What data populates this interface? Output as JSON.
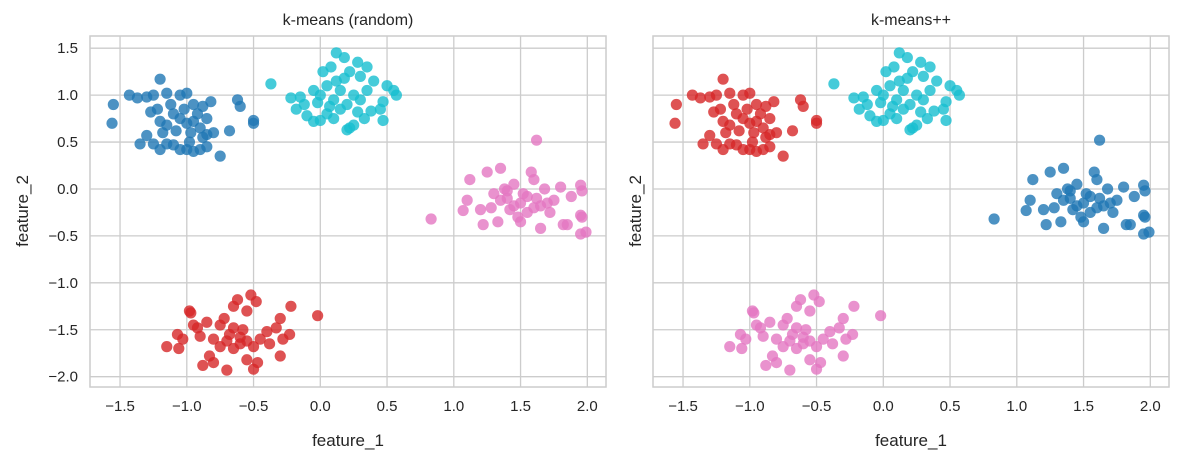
{
  "chart_data": {
    "type": "scatter",
    "grid": true,
    "xlim": [
      -1.725,
      2.14
    ],
    "ylim": [
      -2.11,
      1.63
    ],
    "xticks": [
      "−1.5",
      "−1.0",
      "−0.5",
      "0.0",
      "0.5",
      "1.0",
      "1.5",
      "2.0"
    ],
    "xtick_values": [
      -1.5,
      -1.0,
      -0.5,
      0.0,
      0.5,
      1.0,
      1.5,
      2.0
    ],
    "yticks": [
      "−2.0",
      "−1.5",
      "−1.0",
      "−0.5",
      "0.0",
      "0.5",
      "1.0",
      "1.5"
    ],
    "ytick_values": [
      -2.0,
      -1.5,
      -1.0,
      -0.5,
      0.0,
      0.5,
      1.0,
      1.5
    ],
    "colors": {
      "blue": "#1f77b4",
      "cyan": "#17becf",
      "pink": "#e377c2",
      "red": "#d62728"
    },
    "clusters": {
      "A": [
        [
          -1.55,
          0.9
        ],
        [
          -1.56,
          0.7
        ],
        [
          -1.43,
          1.0
        ],
        [
          -1.37,
          0.97
        ],
        [
          -1.35,
          0.48
        ],
        [
          -1.3,
          0.98
        ],
        [
          -1.25,
          1.0
        ],
        [
          -1.2,
          1.17
        ],
        [
          -1.22,
          0.85
        ],
        [
          -1.27,
          0.82
        ],
        [
          -1.3,
          0.57
        ],
        [
          -1.25,
          0.48
        ],
        [
          -1.2,
          0.42
        ],
        [
          -1.15,
          0.48
        ],
        [
          -1.1,
          0.47
        ],
        [
          -1.05,
          0.42
        ],
        [
          -1.0,
          0.42
        ],
        [
          -0.95,
          0.4
        ],
        [
          -0.9,
          0.42
        ],
        [
          -0.85,
          0.45
        ],
        [
          -0.8,
          0.6
        ],
        [
          -0.85,
          0.58
        ],
        [
          -0.75,
          0.35
        ],
        [
          -0.68,
          0.62
        ],
        [
          -0.6,
          0.88
        ],
        [
          -0.62,
          0.95
        ],
        [
          -0.5,
          0.73
        ],
        [
          -0.5,
          0.7
        ],
        [
          -1.15,
          1.02
        ],
        [
          -1.05,
          1.0
        ],
        [
          -1.0,
          1.02
        ],
        [
          -0.95,
          0.9
        ],
        [
          -0.88,
          0.88
        ],
        [
          -0.82,
          0.93
        ],
        [
          -1.1,
          0.8
        ],
        [
          -1.05,
          0.75
        ],
        [
          -1.0,
          0.7
        ],
        [
          -0.95,
          0.72
        ],
        [
          -0.9,
          0.65
        ],
        [
          -0.97,
          0.6
        ],
        [
          -1.08,
          0.62
        ],
        [
          -1.15,
          0.68
        ],
        [
          -1.12,
          0.9
        ],
        [
          -1.2,
          0.72
        ],
        [
          -0.92,
          0.8
        ],
        [
          -0.85,
          0.75
        ],
        [
          -1.02,
          0.85
        ],
        [
          -0.98,
          0.5
        ],
        [
          -0.88,
          0.55
        ],
        [
          -1.18,
          0.6
        ]
      ],
      "B": [
        [
          -0.37,
          1.12
        ],
        [
          -0.22,
          0.97
        ],
        [
          -0.15,
          0.98
        ],
        [
          -0.12,
          0.9
        ],
        [
          -0.18,
          0.85
        ],
        [
          -0.1,
          0.78
        ],
        [
          -0.05,
          0.72
        ],
        [
          0.0,
          0.73
        ],
        [
          0.02,
          1.25
        ],
        [
          0.08,
          1.3
        ],
        [
          0.12,
          1.45
        ],
        [
          0.18,
          1.4
        ],
        [
          0.28,
          1.35
        ],
        [
          0.35,
          1.3
        ],
        [
          0.3,
          1.2
        ],
        [
          0.22,
          1.25
        ],
        [
          0.4,
          1.15
        ],
        [
          0.5,
          1.1
        ],
        [
          0.55,
          1.05
        ],
        [
          0.57,
          1.0
        ],
        [
          0.47,
          0.93
        ],
        [
          0.45,
          0.85
        ],
        [
          0.47,
          0.73
        ],
        [
          0.38,
          0.83
        ],
        [
          0.33,
          0.75
        ],
        [
          0.25,
          0.68
        ],
        [
          0.2,
          0.63
        ],
        [
          0.22,
          0.65
        ],
        [
          0.1,
          0.75
        ],
        [
          0.05,
          0.8
        ],
        [
          0.15,
          0.85
        ],
        [
          0.2,
          0.9
        ],
        [
          0.1,
          0.95
        ],
        [
          0.0,
          1.0
        ],
        [
          -0.05,
          1.05
        ],
        [
          0.05,
          1.1
        ],
        [
          0.15,
          1.05
        ],
        [
          0.25,
          1.0
        ],
        [
          0.3,
          0.95
        ],
        [
          0.35,
          1.05
        ],
        [
          0.12,
          1.15
        ],
        [
          -0.02,
          0.92
        ],
        [
          0.28,
          0.82
        ],
        [
          0.18,
          1.18
        ],
        [
          0.07,
          0.88
        ]
      ],
      "C": [
        [
          0.83,
          -0.32
        ],
        [
          1.07,
          -0.23
        ],
        [
          1.1,
          -0.12
        ],
        [
          1.12,
          0.1
        ],
        [
          1.2,
          -0.22
        ],
        [
          1.22,
          -0.38
        ],
        [
          1.25,
          0.18
        ],
        [
          1.28,
          -0.2
        ],
        [
          1.3,
          -0.05
        ],
        [
          1.33,
          -0.35
        ],
        [
          1.35,
          0.22
        ],
        [
          1.38,
          0.0
        ],
        [
          1.4,
          -0.1
        ],
        [
          1.42,
          -0.22
        ],
        [
          1.45,
          0.05
        ],
        [
          1.48,
          -0.3
        ],
        [
          1.5,
          -0.15
        ],
        [
          1.52,
          -0.05
        ],
        [
          1.55,
          -0.25
        ],
        [
          1.58,
          0.18
        ],
        [
          1.6,
          0.1
        ],
        [
          1.62,
          0.52
        ],
        [
          1.6,
          -0.2
        ],
        [
          1.62,
          -0.1
        ],
        [
          1.65,
          -0.42
        ],
        [
          1.68,
          0.0
        ],
        [
          1.7,
          -0.15
        ],
        [
          1.72,
          -0.25
        ],
        [
          1.75,
          -0.12
        ],
        [
          1.8,
          0.02
        ],
        [
          1.82,
          -0.38
        ],
        [
          1.85,
          -0.38
        ],
        [
          1.88,
          -0.08
        ],
        [
          1.95,
          0.04
        ],
        [
          1.96,
          -0.02
        ],
        [
          1.95,
          -0.28
        ],
        [
          1.96,
          -0.3
        ],
        [
          1.95,
          -0.48
        ],
        [
          1.99,
          -0.46
        ],
        [
          1.35,
          -0.12
        ],
        [
          1.45,
          -0.18
        ],
        [
          1.55,
          -0.08
        ],
        [
          1.65,
          -0.18
        ],
        [
          1.5,
          -0.35
        ],
        [
          1.4,
          -0.02
        ]
      ],
      "D": [
        [
          -1.15,
          -1.68
        ],
        [
          -1.06,
          -1.7
        ],
        [
          -1.07,
          -1.55
        ],
        [
          -1.03,
          -1.6
        ],
        [
          -0.98,
          -1.3
        ],
        [
          -0.97,
          -1.32
        ],
        [
          -0.95,
          -1.45
        ],
        [
          -0.92,
          -1.48
        ],
        [
          -0.9,
          -1.57
        ],
        [
          -0.88,
          -1.88
        ],
        [
          -0.85,
          -1.42
        ],
        [
          -0.83,
          -1.78
        ],
        [
          -0.8,
          -1.85
        ],
        [
          -0.8,
          -1.6
        ],
        [
          -0.75,
          -1.45
        ],
        [
          -0.72,
          -1.38
        ],
        [
          -0.7,
          -1.93
        ],
        [
          -0.68,
          -1.55
        ],
        [
          -0.65,
          -1.25
        ],
        [
          -0.62,
          -1.18
        ],
        [
          -0.6,
          -1.65
        ],
        [
          -0.58,
          -1.5
        ],
        [
          -0.55,
          -1.82
        ],
        [
          -0.55,
          -1.3
        ],
        [
          -0.52,
          -1.13
        ],
        [
          -0.5,
          -1.92
        ],
        [
          -0.48,
          -1.2
        ],
        [
          -0.47,
          -1.85
        ],
        [
          -0.45,
          -1.6
        ],
        [
          -0.4,
          -1.52
        ],
        [
          -0.38,
          -1.65
        ],
        [
          -0.33,
          -1.48
        ],
        [
          -0.3,
          -1.38
        ],
        [
          -0.3,
          -1.78
        ],
        [
          -0.28,
          -1.6
        ],
        [
          -0.23,
          -1.55
        ],
        [
          -0.22,
          -1.25
        ],
        [
          -0.02,
          -1.35
        ],
        [
          -0.7,
          -1.62
        ],
        [
          -0.65,
          -1.7
        ],
        [
          -0.6,
          -1.58
        ],
        [
          -0.75,
          -1.68
        ],
        [
          -0.55,
          -1.62
        ],
        [
          -0.5,
          -1.68
        ],
        [
          -0.65,
          -1.48
        ]
      ]
    },
    "subplots": [
      {
        "title": "k-means (random)",
        "xlabel": "feature_1",
        "ylabel": "feature_2",
        "show_yticklabels": true,
        "cluster_colors": {
          "A": "blue",
          "B": "cyan",
          "C": "pink",
          "D": "red"
        }
      },
      {
        "title": "k-means++",
        "xlabel": "feature_1",
        "ylabel": "feature_2",
        "show_yticklabels": false,
        "cluster_colors": {
          "A": "red",
          "B": "cyan",
          "C": "blue",
          "D": "pink"
        }
      }
    ]
  }
}
